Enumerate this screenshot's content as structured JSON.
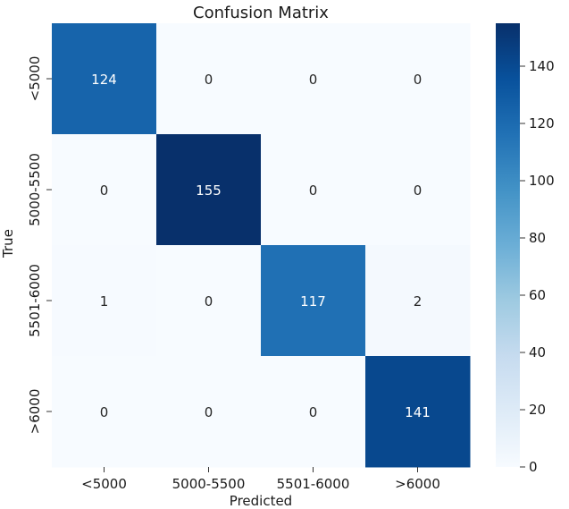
{
  "chart_data": {
    "type": "heatmap",
    "title": "Confusion Matrix",
    "xlabel": "Predicted",
    "ylabel": "True",
    "x_categories": [
      "<5000",
      "5000-5500",
      "5501-6000",
      ">6000"
    ],
    "y_categories": [
      "<5000",
      "5000-5500",
      "5501-6000",
      ">6000"
    ],
    "values": [
      [
        124,
        0,
        0,
        0
      ],
      [
        0,
        155,
        0,
        0
      ],
      [
        1,
        0,
        117,
        2
      ],
      [
        0,
        0,
        0,
        141
      ]
    ],
    "colormap": "Blues",
    "colorbar": {
      "range": [
        0,
        155
      ],
      "ticks": [
        0,
        20,
        40,
        60,
        80,
        100,
        120,
        140
      ]
    },
    "colors": {
      "low": "#f7fbff",
      "high": "#08306b",
      "text_dark": "#262626",
      "text_light": "#ffffff"
    }
  }
}
